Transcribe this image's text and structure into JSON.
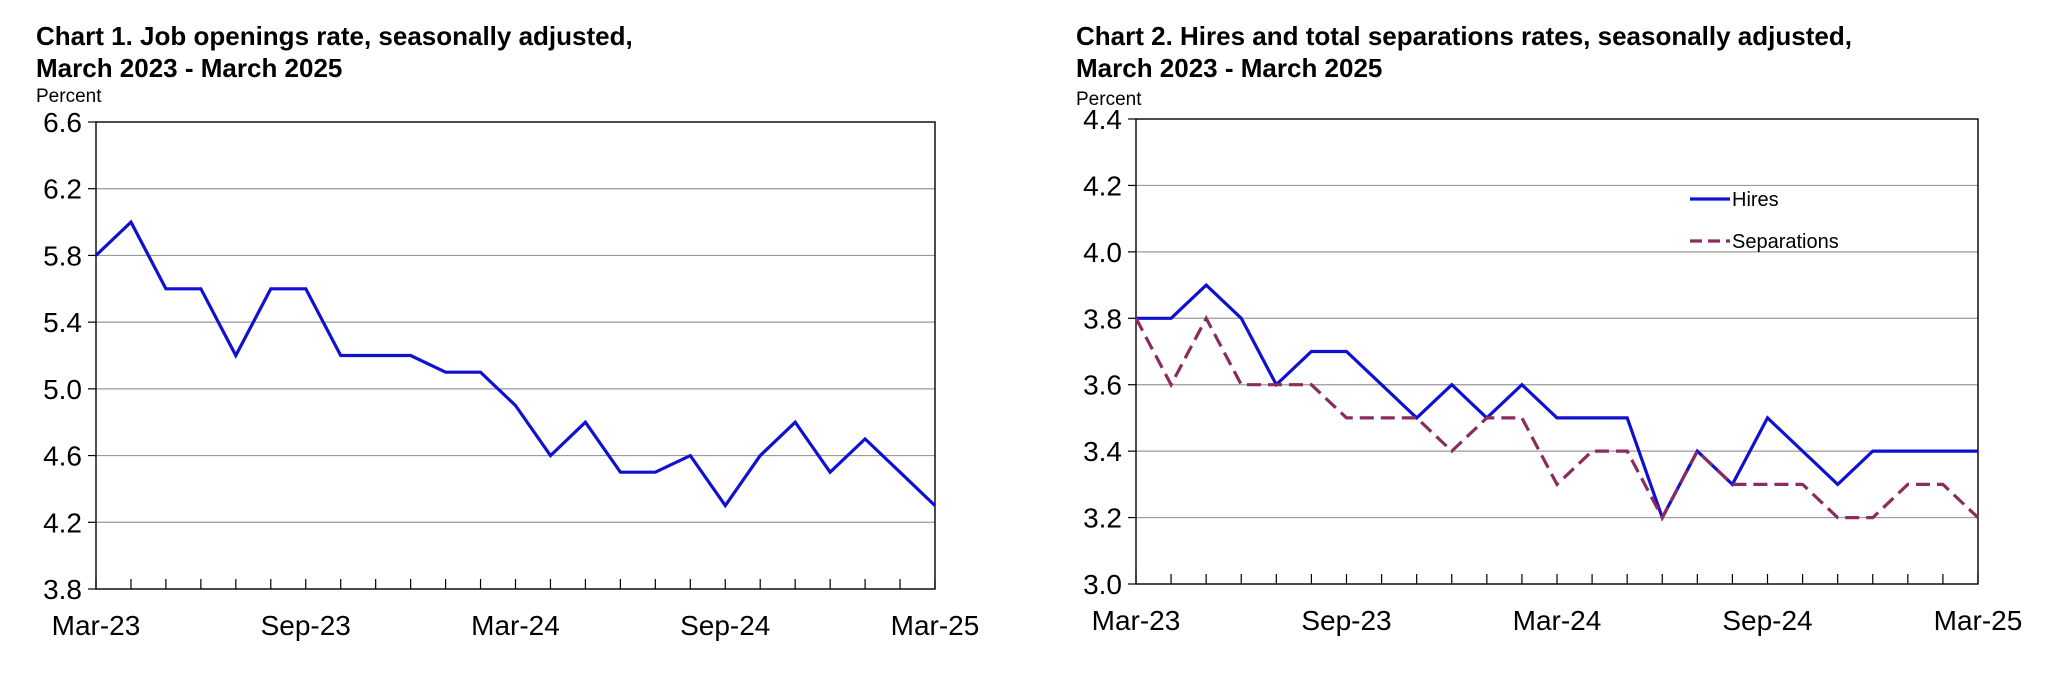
{
  "chart_data": [
    {
      "type": "line",
      "title": "Chart 1. Job openings rate, seasonally adjusted,",
      "subtitle": "March 2023 - March 2025",
      "ylabel": "Percent",
      "xlabel": "",
      "ylim": [
        3.8,
        6.6
      ],
      "yticks": [
        "6.6",
        "6.2",
        "5.8",
        "5.4",
        "5.0",
        "4.6",
        "4.2",
        "3.8"
      ],
      "xtick_labels": [
        "Mar-23",
        "Sep-23",
        "Mar-24",
        "Sep-24",
        "Mar-25"
      ],
      "x": [
        "Mar-23",
        "Apr-23",
        "May-23",
        "Jun-23",
        "Jul-23",
        "Aug-23",
        "Sep-23",
        "Oct-23",
        "Nov-23",
        "Dec-23",
        "Jan-24",
        "Feb-24",
        "Mar-24",
        "Apr-24",
        "May-24",
        "Jun-24",
        "Jul-24",
        "Aug-24",
        "Sep-24",
        "Oct-24",
        "Nov-24",
        "Dec-24",
        "Jan-25",
        "Feb-25",
        "Mar-25"
      ],
      "series": [
        {
          "values": [
            5.8,
            6.0,
            5.6,
            5.6,
            5.2,
            5.6,
            5.6,
            5.2,
            5.2,
            5.2,
            5.1,
            5.1,
            4.9,
            4.6,
            4.8,
            4.5,
            4.5,
            4.6,
            4.3,
            4.6,
            4.8,
            4.5,
            4.7,
            4.5,
            4.3
          ],
          "color": "#1010d0",
          "dash": "solid"
        }
      ],
      "grid": true,
      "legend": "none"
    },
    {
      "type": "line",
      "title": "Chart 2. Hires and total separations rates, seasonally adjusted,",
      "subtitle": "March 2023 - March 2025",
      "ylabel": "Percent",
      "xlabel": "",
      "ylim": [
        3.0,
        4.4
      ],
      "yticks": [
        "4.4",
        "4.2",
        "4.0",
        "3.8",
        "3.6",
        "3.4",
        "3.2",
        "3.0"
      ],
      "xtick_labels": [
        "Mar-23",
        "Sep-23",
        "Mar-24",
        "Sep-24",
        "Mar-25"
      ],
      "x": [
        "Mar-23",
        "Apr-23",
        "May-23",
        "Jun-23",
        "Jul-23",
        "Aug-23",
        "Sep-23",
        "Oct-23",
        "Nov-23",
        "Dec-23",
        "Jan-24",
        "Feb-24",
        "Mar-24",
        "Apr-24",
        "May-24",
        "Jun-24",
        "Jul-24",
        "Aug-24",
        "Sep-24",
        "Oct-24",
        "Nov-24",
        "Dec-24",
        "Jan-25",
        "Feb-25",
        "Mar-25"
      ],
      "series": [
        {
          "name": "Hires",
          "values": [
            3.8,
            3.8,
            3.9,
            3.8,
            3.6,
            3.7,
            3.7,
            3.6,
            3.5,
            3.6,
            3.5,
            3.6,
            3.5,
            3.5,
            3.5,
            3.2,
            3.4,
            3.3,
            3.5,
            3.4,
            3.3,
            3.4,
            3.4,
            3.4,
            3.4
          ],
          "color": "#1010d0",
          "dash": "solid"
        },
        {
          "name": "Separations",
          "values": [
            3.8,
            3.6,
            3.8,
            3.6,
            3.6,
            3.6,
            3.5,
            3.5,
            3.5,
            3.4,
            3.5,
            3.5,
            3.3,
            3.4,
            3.4,
            3.2,
            3.4,
            3.3,
            3.3,
            3.3,
            3.2,
            3.2,
            3.3,
            3.3,
            3.2
          ],
          "color": "#8b2c5e",
          "dash": "dashed"
        }
      ],
      "grid": true,
      "legend": "top-right"
    }
  ]
}
